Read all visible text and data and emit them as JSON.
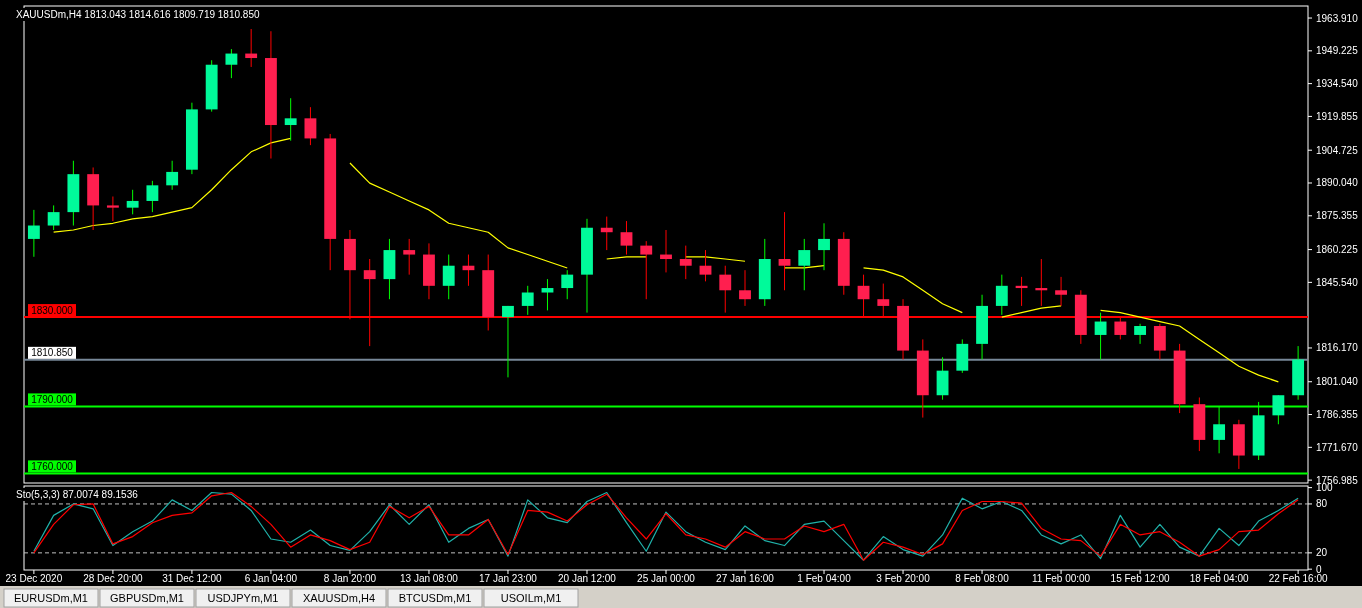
{
  "chart_data": [
    {
      "type": "candlestick",
      "title": "XAUUSDm,H4 1813.043 1814.616 1809.719 1810.850",
      "tick_labels": "y",
      "categories": [
        null,
        null,
        null,
        null,
        null,
        null,
        null,
        null,
        null,
        null,
        null,
        null,
        null,
        null,
        null,
        null,
        null,
        null,
        null,
        null,
        null,
        null,
        null,
        null,
        null,
        null,
        null,
        null,
        null,
        null,
        null,
        null,
        null,
        null,
        null,
        null,
        null,
        null,
        null,
        null,
        null,
        null,
        null,
        null,
        null,
        null,
        null,
        null,
        null,
        null,
        null,
        null,
        null,
        null,
        null,
        null,
        null,
        null,
        null,
        null,
        null,
        null,
        null,
        null,
        null
      ],
      "ohlc": [
        [
          1865,
          1878,
          1857,
          1871
        ],
        [
          1871,
          1880,
          1869,
          1877
        ],
        [
          1877,
          1900,
          1871,
          1894
        ],
        [
          1894,
          1897,
          1869,
          1880
        ],
        [
          1880,
          1884,
          1873,
          1879
        ],
        [
          1879,
          1887,
          1876,
          1882
        ],
        [
          1882,
          1891,
          1877,
          1889
        ],
        [
          1889,
          1900,
          1887,
          1895
        ],
        [
          1896,
          1926,
          1894,
          1923
        ],
        [
          1923,
          1945,
          1922,
          1943
        ],
        [
          1943,
          1950,
          1937,
          1948
        ],
        [
          1948,
          1959,
          1942,
          1946
        ],
        [
          1946,
          1958,
          1901,
          1916
        ],
        [
          1916,
          1928,
          1909,
          1919
        ],
        [
          1919,
          1924,
          1907,
          1910
        ],
        [
          1910,
          1912,
          1851,
          1865
        ],
        [
          1865,
          1869,
          1829,
          1851
        ],
        [
          1851,
          1856,
          1817,
          1847
        ],
        [
          1847,
          1865,
          1838,
          1860
        ],
        [
          1860,
          1865,
          1849,
          1858
        ],
        [
          1858,
          1863,
          1838,
          1844
        ],
        [
          1844,
          1858,
          1838,
          1853
        ],
        [
          1853,
          1858,
          1844,
          1851
        ],
        [
          1851,
          1858,
          1824,
          1830
        ],
        [
          1830,
          1835,
          1803,
          1835
        ],
        [
          1835,
          1844,
          1831,
          1841
        ],
        [
          1841,
          1847,
          1833,
          1843
        ],
        [
          1843,
          1851,
          1838,
          1849
        ],
        [
          1849,
          1874,
          1832,
          1870
        ],
        [
          1870,
          1875,
          1860,
          1868
        ],
        [
          1868,
          1873,
          1858,
          1862
        ],
        [
          1862,
          1864,
          1838,
          1858
        ],
        [
          1858,
          1869,
          1850,
          1856
        ],
        [
          1856,
          1862,
          1847,
          1853
        ],
        [
          1853,
          1860,
          1846,
          1849
        ],
        [
          1849,
          1853,
          1832,
          1842
        ],
        [
          1842,
          1851,
          1835,
          1838
        ],
        [
          1838,
          1865,
          1835,
          1856
        ],
        [
          1856,
          1877,
          1842,
          1853
        ],
        [
          1853,
          1865,
          1842,
          1860
        ],
        [
          1860,
          1872,
          1851,
          1865
        ],
        [
          1865,
          1868,
          1840,
          1844
        ],
        [
          1844,
          1849,
          1830,
          1838
        ],
        [
          1838,
          1845,
          1830,
          1835
        ],
        [
          1835,
          1838,
          1811,
          1815
        ],
        [
          1815,
          1820,
          1785,
          1795
        ],
        [
          1795,
          1812,
          1793,
          1806
        ],
        [
          1806,
          1820,
          1805,
          1818
        ],
        [
          1818,
          1840,
          1811,
          1835
        ],
        [
          1835,
          1849,
          1831,
          1844
        ],
        [
          1844,
          1848,
          1835,
          1843
        ],
        [
          1843,
          1856,
          1835,
          1842
        ],
        [
          1842,
          1848,
          1835,
          1840
        ],
        [
          1840,
          1842,
          1818,
          1822
        ],
        [
          1822,
          1832,
          1811,
          1828
        ],
        [
          1828,
          1830,
          1820,
          1822
        ],
        [
          1822,
          1827,
          1818,
          1826
        ],
        [
          1826,
          1827,
          1811,
          1815
        ],
        [
          1815,
          1818,
          1787,
          1791
        ],
        [
          1791,
          1794,
          1770,
          1775
        ],
        [
          1775,
          1790,
          1769,
          1782
        ],
        [
          1782,
          1784,
          1762,
          1768
        ],
        [
          1768,
          1792,
          1766,
          1786
        ],
        [
          1786,
          1795,
          1782,
          1795
        ],
        [
          1795,
          1817,
          1793,
          1811
        ]
      ],
      "series": [
        {
          "type": "line",
          "color": "#ffff00",
          "values": [
            null,
            1868,
            1869,
            1871,
            1872,
            1874,
            1875,
            1877,
            1879,
            1887,
            1896,
            1904,
            1908,
            1910,
            null,
            null,
            1899,
            1890,
            1886,
            1882,
            1878,
            1872,
            1870,
            1868,
            1861,
            1858,
            1855,
            1852,
            null,
            1856,
            1857,
            1857,
            null,
            1857,
            1857,
            1856,
            1855,
            null,
            1852,
            1852,
            1853,
            null,
            1852,
            1851,
            1848,
            1842,
            1836,
            1832,
            null,
            1830,
            1832,
            1834,
            1835,
            null,
            1833,
            1832,
            1830,
            1828,
            1826,
            1820,
            1814,
            1808,
            1804,
            1801,
            null
          ]
        }
      ],
      "ylim": [
        1755.7,
        1969.3
      ],
      "yticks": [
        {
          "value": 1963.91,
          "label": "1963.910"
        },
        {
          "value": 1949.225,
          "label": "1949.225"
        },
        {
          "value": 1934.54,
          "label": "1934.540"
        },
        {
          "value": 1919.855,
          "label": "1919.855"
        },
        {
          "value": 1904.725,
          "label": "1904.725"
        },
        {
          "value": 1890.04,
          "label": "1890.040"
        },
        {
          "value": 1875.355,
          "label": "1875.355"
        },
        {
          "value": 1860.225,
          "label": "1860.225"
        },
        {
          "value": 1845.54,
          "label": "1845.540"
        },
        {
          "value": 1816.17,
          "label": "1816.170"
        },
        {
          "value": 1801.04,
          "label": "1801.040"
        },
        {
          "value": 1786.355,
          "label": "1786.355"
        },
        {
          "value": 1771.67,
          "label": "1771.670"
        },
        {
          "value": 1756.985,
          "label": "1756.985"
        }
      ],
      "ref_lines": [
        {
          "axis": "y",
          "value": 1830,
          "label": "1830.000",
          "color": "#ff0000"
        },
        {
          "axis": "y",
          "value": 1810.85,
          "label": "1810.850",
          "color": "#778899"
        },
        {
          "axis": "y",
          "value": 1790,
          "label": "1790.000",
          "color": "#00ff00"
        },
        {
          "axis": "y",
          "value": 1760,
          "label": "1760.000",
          "color": "#00ff00"
        }
      ],
      "annotations": [
        "EURUSDm,M1",
        "GBPUSDm,M1",
        "USDJPYm,M1",
        "XAUUSDm,H4",
        "BTCUSDm,M1",
        "USOILm,M1"
      ],
      "grid": false
    },
    {
      "type": "line",
      "title": "Sto(5,3,3) 87.0074 89.1536",
      "categories": [
        "23 Dec 2020",
        null,
        null,
        null,
        "28 Dec 20:00",
        null,
        null,
        null,
        "31 Dec 12:00",
        null,
        null,
        null,
        "6 Jan 04:00",
        null,
        null,
        null,
        "8 Jan 20:00",
        null,
        null,
        null,
        "13 Jan 08:00",
        null,
        null,
        null,
        "17 Jan 23:00",
        null,
        null,
        null,
        "20 Jan 12:00",
        null,
        null,
        null,
        "25 Jan 00:00",
        null,
        null,
        null,
        "27 Jan 16:00",
        null,
        null,
        null,
        "1 Feb 04:00",
        null,
        null,
        null,
        "3 Feb 20:00",
        null,
        null,
        null,
        "8 Feb 08:00",
        null,
        null,
        null,
        "11 Feb 00:00",
        null,
        null,
        null,
        "15 Feb 12:00",
        null,
        null,
        null,
        "18 Feb 04:00",
        null,
        null,
        null,
        "22 Feb 16:00"
      ],
      "series": [
        {
          "color": "#20b2aa",
          "values": [
            22,
            66,
            80,
            74,
            29,
            46,
            59,
            85,
            72,
            94,
            92,
            72,
            37,
            33,
            48,
            29,
            23,
            46,
            79,
            55,
            79,
            33,
            50,
            61,
            16,
            85,
            63,
            57,
            83,
            94,
            57,
            22,
            70,
            46,
            33,
            24,
            53,
            35,
            29,
            55,
            59,
            35,
            11,
            40,
            24,
            16,
            42,
            87,
            74,
            83,
            72,
            42,
            31,
            42,
            13,
            66,
            27,
            55,
            27,
            16,
            50,
            29,
            59,
            72,
            87
          ]
        },
        {
          "color": "#ff0000",
          "values": [
            20,
            55,
            79,
            80,
            31,
            40,
            57,
            66,
            69,
            90,
            94,
            77,
            55,
            27,
            42,
            35,
            24,
            33,
            77,
            63,
            77,
            42,
            42,
            61,
            18,
            72,
            70,
            59,
            79,
            92,
            63,
            37,
            68,
            42,
            37,
            27,
            46,
            37,
            37,
            53,
            46,
            55,
            11,
            33,
            27,
            18,
            31,
            72,
            83,
            83,
            81,
            50,
            37,
            35,
            16,
            55,
            42,
            46,
            33,
            16,
            24,
            46,
            48,
            68,
            85
          ]
        }
      ],
      "ylim": [
        -1,
        102
      ],
      "yticks": [
        100,
        80,
        20,
        0
      ],
      "ref_lines": [
        {
          "axis": "y",
          "value": 80,
          "color": "#c0c0c0",
          "line_style": "dashed"
        },
        {
          "axis": "y",
          "value": 20,
          "color": "#c0c0c0",
          "line_style": "dashed"
        }
      ],
      "grid": false
    }
  ]
}
